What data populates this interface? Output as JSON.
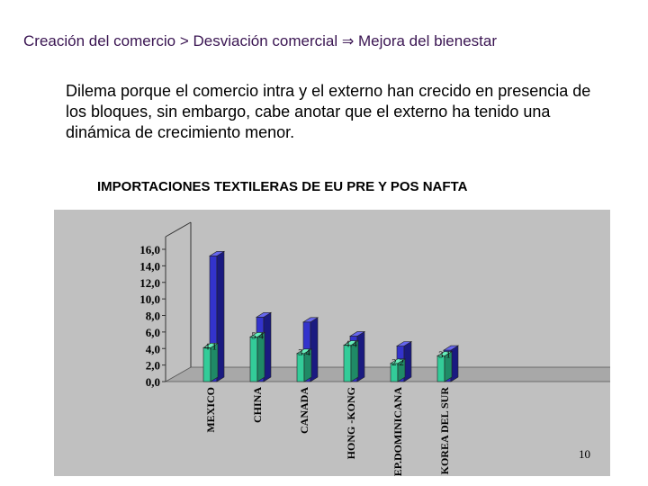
{
  "slide": {
    "heading_part1": "Creación del comercio  > Desviación comercial ",
    "heading_arrow": "⇒",
    "heading_part2": " Mejora del bienestar",
    "body": "Dilema porque el comercio intra y el externo han crecido en presencia de los bloques, sin embargo, cabe anotar que el externo ha tenido una dinámica de crecimiento menor.",
    "page_number": "10"
  },
  "chart_data": {
    "type": "bar",
    "title": "IMPORTACIONES TEXTILERAS DE EU PRE Y POS NAFTA",
    "categories": [
      "MEXICO",
      "CHINA",
      "CANADA",
      "HONG -KONG",
      "REP.DOMINICANA",
      "KOREA DEL SUR"
    ],
    "series": [
      {
        "color": "#33cc99",
        "values": [
          4.1,
          5.4,
          3.4,
          4.4,
          2.2,
          3.1
        ]
      },
      {
        "color": "#3333cc",
        "values": [
          15.2,
          7.8,
          7.2,
          5.5,
          4.3,
          3.8
        ]
      }
    ],
    "data_labels": [
      "4.1",
      "5.4",
      "3.4",
      "4.4",
      "2.2",
      "3.1"
    ],
    "ylim": [
      0,
      16
    ],
    "y_ticks": [
      "0,0",
      "2,0",
      "4,0",
      "6,0",
      "8,0",
      "10,0",
      "12,0",
      "14,0",
      "16,0"
    ],
    "y_tick_values": [
      0,
      2,
      4,
      6,
      8,
      10,
      12,
      14,
      16
    ],
    "grid": false,
    "legend": "none"
  }
}
